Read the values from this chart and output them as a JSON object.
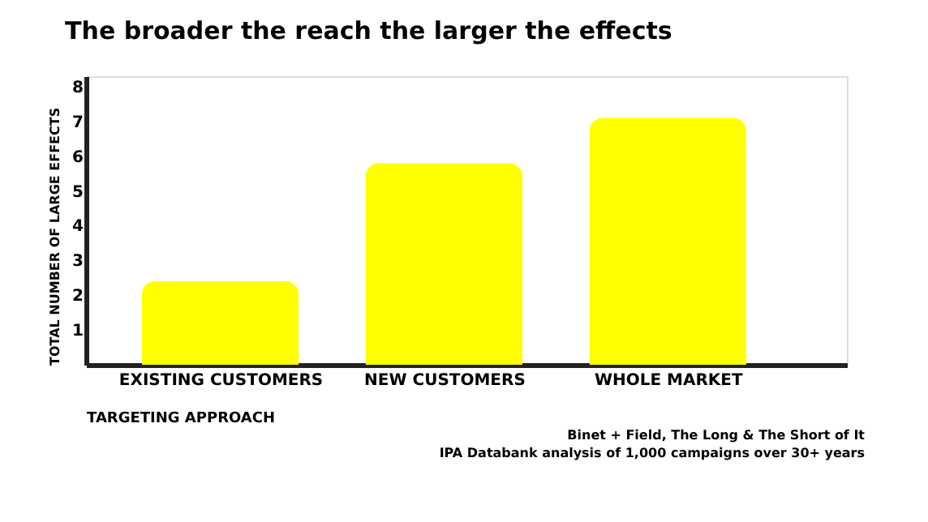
{
  "chart_data": {
    "type": "bar",
    "title": "The broader the reach the larger the effects",
    "xlabel": "TARGETING APPROACH",
    "ylabel": "TOTAL NUMBER OF LARGE EFFECTS",
    "categories": [
      "EXISTING CUSTOMERS",
      "NEW CUSTOMERS",
      "WHOLE MARKET"
    ],
    "values": [
      2.4,
      5.8,
      7.1
    ],
    "color": "#ffff00",
    "ylim": [
      0,
      8.3
    ],
    "yticks": [
      1,
      2,
      3,
      4,
      5,
      6,
      7,
      8
    ],
    "grid": false,
    "annotations": [
      "Binet + Field, The Long & The Short of It",
      "IPA Databank analysis of 1,000 campaigns over 30+ years"
    ]
  }
}
